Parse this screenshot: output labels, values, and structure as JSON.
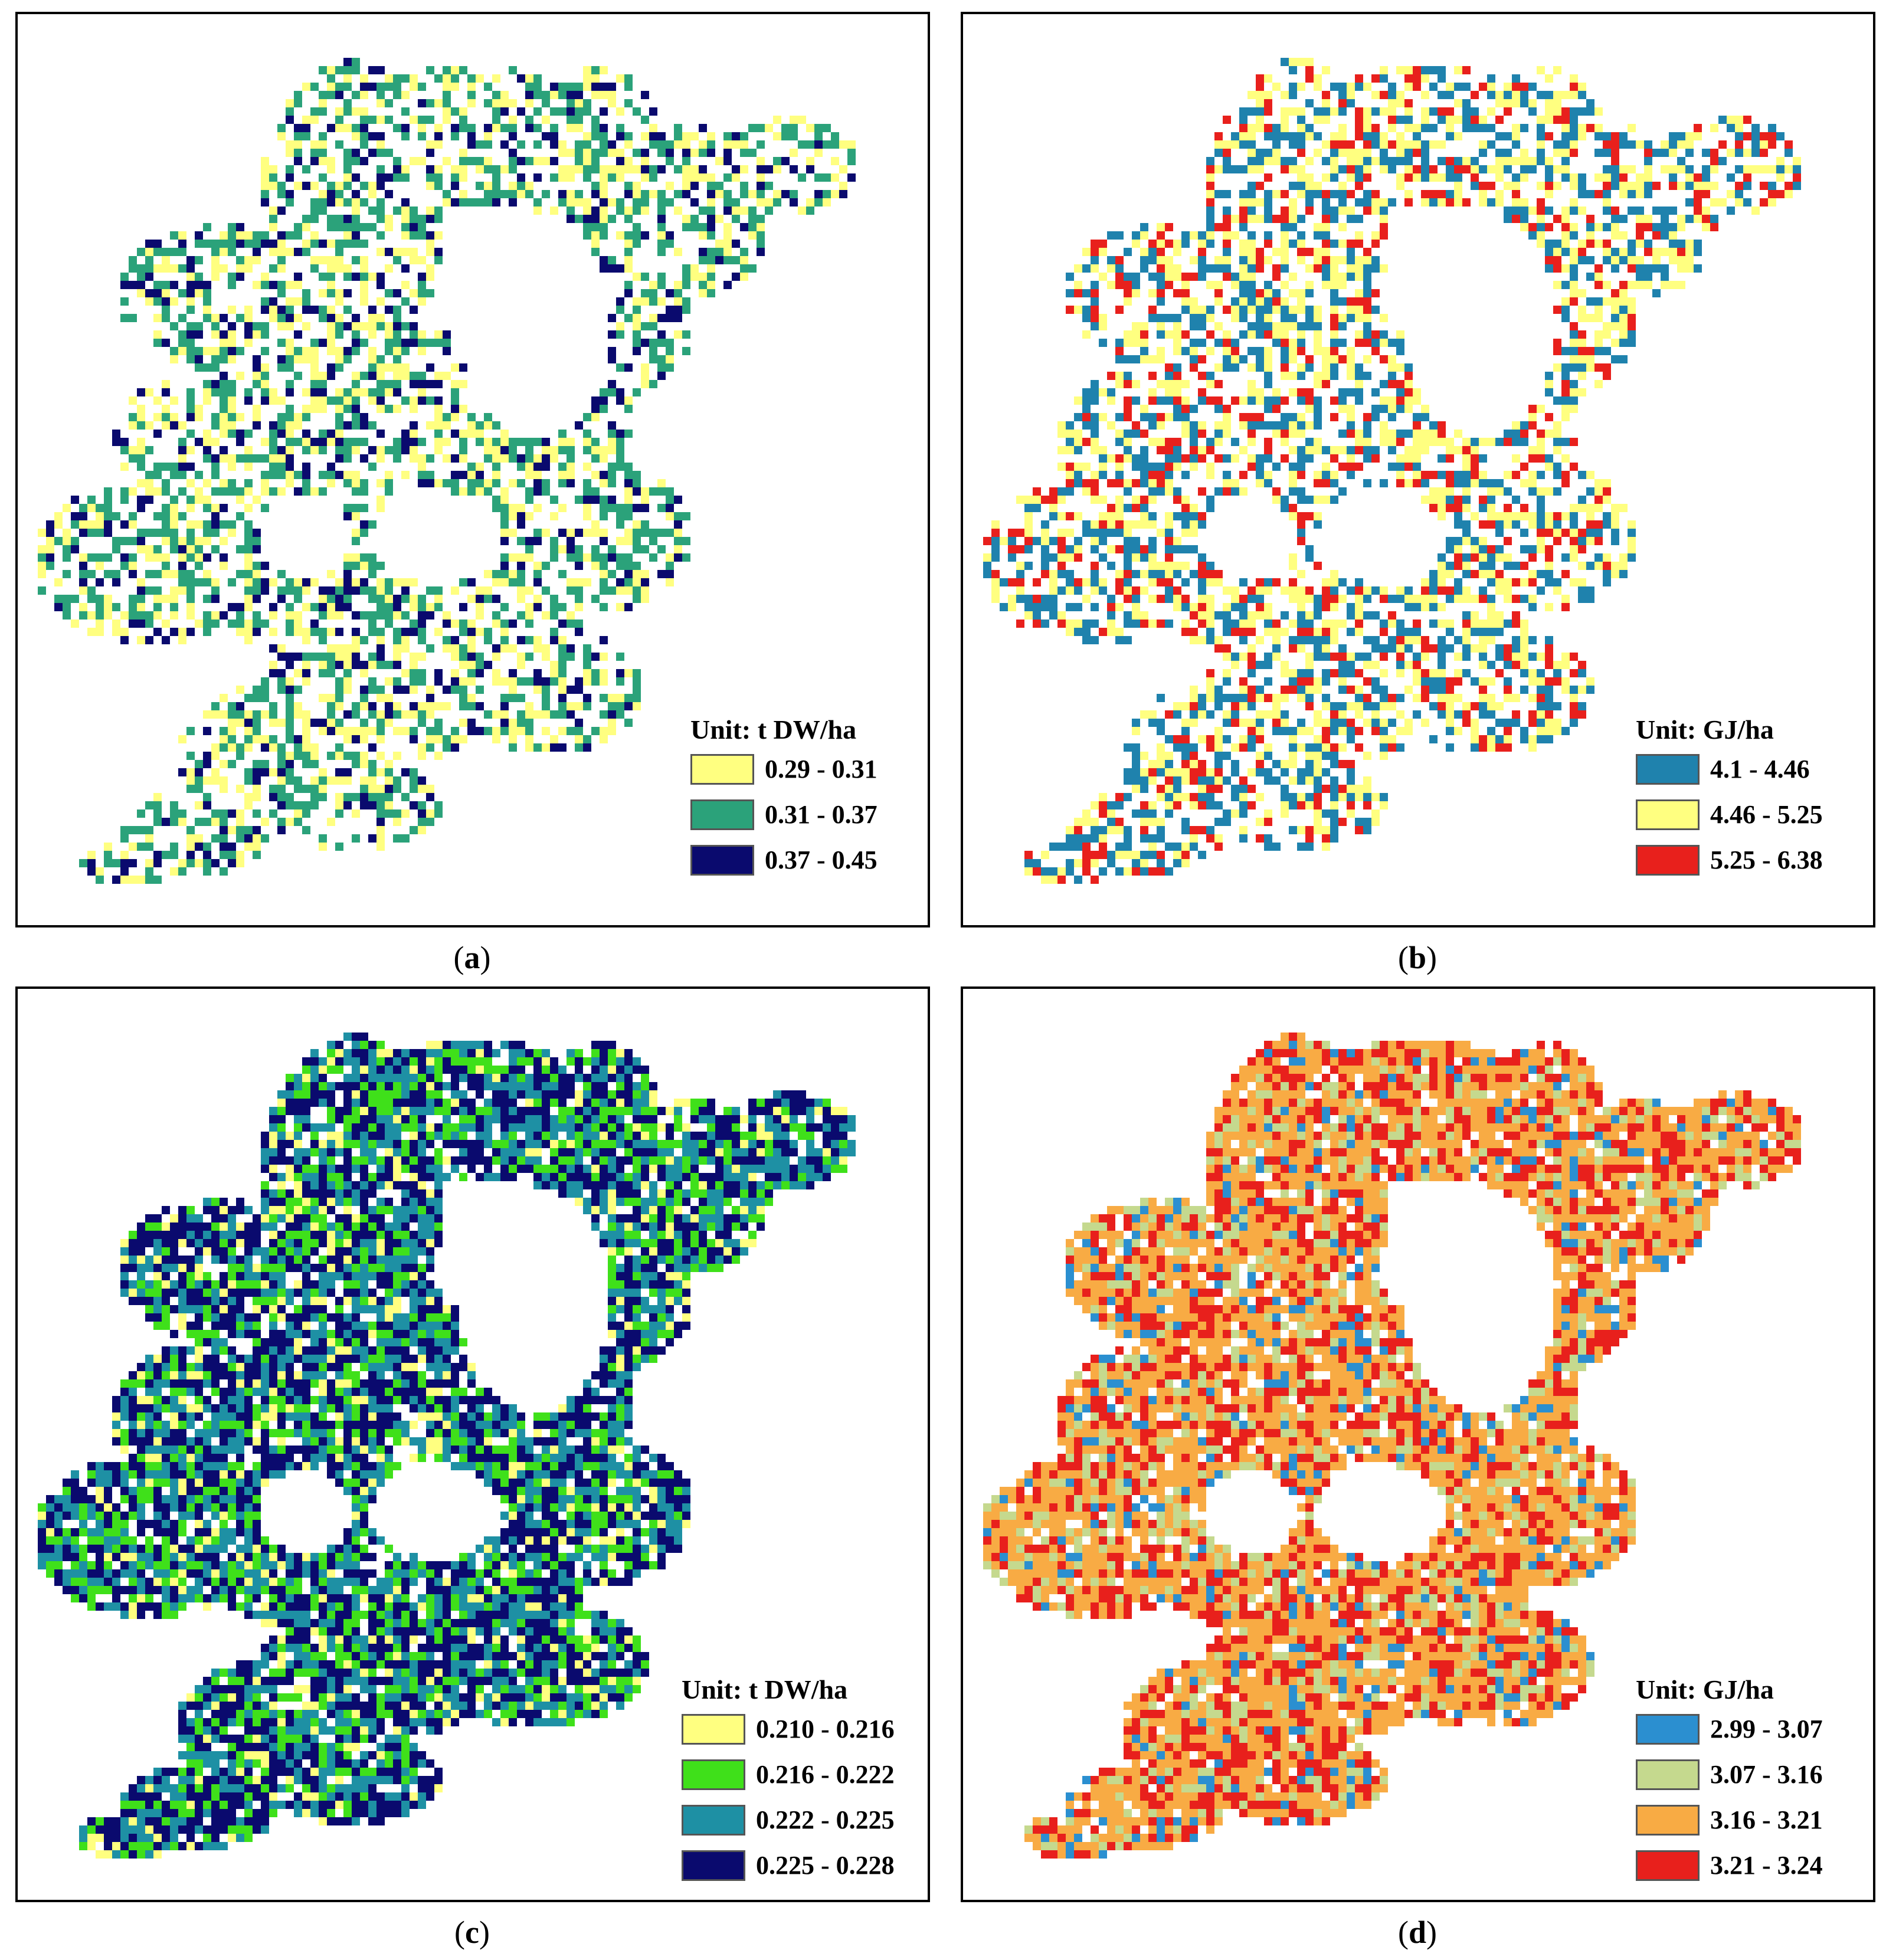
{
  "panels": [
    {
      "id": "a",
      "caption_letter": "a",
      "legend": {
        "unit": "Unit: t DW/ha",
        "classes": [
          {
            "label": "0.29 - 0.31",
            "color": "#ffff80"
          },
          {
            "label": "0.31 - 0.37",
            "color": "#2ba27a"
          },
          {
            "label": "0.37 - 0.45",
            "color": "#0a0a6e"
          }
        ]
      }
    },
    {
      "id": "b",
      "caption_letter": "b",
      "legend": {
        "unit": "Unit: GJ/ha",
        "classes": [
          {
            "label": "4.1 - 4.46",
            "color": "#1f82ad"
          },
          {
            "label": "4.46 - 5.25",
            "color": "#ffff80"
          },
          {
            "label": "5.25 - 6.38",
            "color": "#e8201c"
          }
        ]
      }
    },
    {
      "id": "c",
      "caption_letter": "c",
      "legend": {
        "unit": "Unit: t DW/ha",
        "classes": [
          {
            "label": "0.210 - 0.216",
            "color": "#ffff80"
          },
          {
            "label": "0.216 - 0.222",
            "color": "#3fe01a"
          },
          {
            "label": "0.222 - 0.225",
            "color": "#1e90a4"
          },
          {
            "label": "0.225 - 0.228",
            "color": "#0a0a6e"
          }
        ]
      }
    },
    {
      "id": "d",
      "caption_letter": "d",
      "legend": {
        "unit": "Unit: GJ/ha",
        "classes": [
          {
            "label": "2.99 - 3.07",
            "color": "#2b8fd0"
          },
          {
            "label": "3.07 - 3.16",
            "color": "#c5d98e"
          },
          {
            "label": "3.16 - 3.21",
            "color": "#f8ab44"
          },
          {
            "label": "3.21 - 3.24",
            "color": "#e8201c"
          }
        ]
      }
    }
  ]
}
